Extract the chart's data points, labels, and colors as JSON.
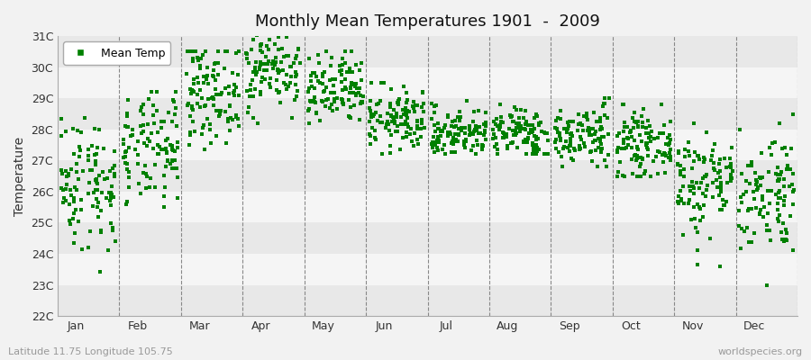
{
  "title": "Monthly Mean Temperatures 1901  -  2009",
  "ylabel": "Temperature",
  "bottom_left_label": "Latitude 11.75 Longitude 105.75",
  "bottom_right_label": "worldspecies.org",
  "legend_label": "Mean Temp",
  "marker_color": "#008000",
  "marker": "s",
  "marker_size": 3,
  "ylim": [
    22,
    31
  ],
  "yticks": [
    22,
    23,
    24,
    25,
    26,
    27,
    28,
    29,
    30,
    31
  ],
  "ytick_labels": [
    "22C",
    "23C",
    "24C",
    "25C",
    "26C",
    "27C",
    "28C",
    "29C",
    "30C",
    "31C"
  ],
  "months": [
    "Jan",
    "Feb",
    "Mar",
    "Apr",
    "May",
    "Jun",
    "Jul",
    "Aug",
    "Sep",
    "Oct",
    "Nov",
    "Dec"
  ],
  "bg_color": "#f2f2f2",
  "band_colors": [
    "#e8e8e8",
    "#f5f5f5"
  ],
  "monthly_means": [
    26.3,
    27.3,
    29.2,
    30.0,
    29.2,
    28.3,
    27.9,
    27.9,
    27.8,
    27.5,
    26.3,
    26.0
  ],
  "monthly_stds": [
    1.1,
    0.9,
    0.8,
    0.7,
    0.6,
    0.5,
    0.4,
    0.4,
    0.5,
    0.5,
    0.9,
    1.0
  ],
  "monthly_mins": [
    22.5,
    24.5,
    27.0,
    28.2,
    27.5,
    27.2,
    27.2,
    27.2,
    26.8,
    26.5,
    23.0,
    23.0
  ],
  "monthly_maxs": [
    29.0,
    29.2,
    30.5,
    31.3,
    30.5,
    29.5,
    29.0,
    28.8,
    29.0,
    28.8,
    28.2,
    28.5
  ],
  "n_years": 109,
  "seed": 42
}
